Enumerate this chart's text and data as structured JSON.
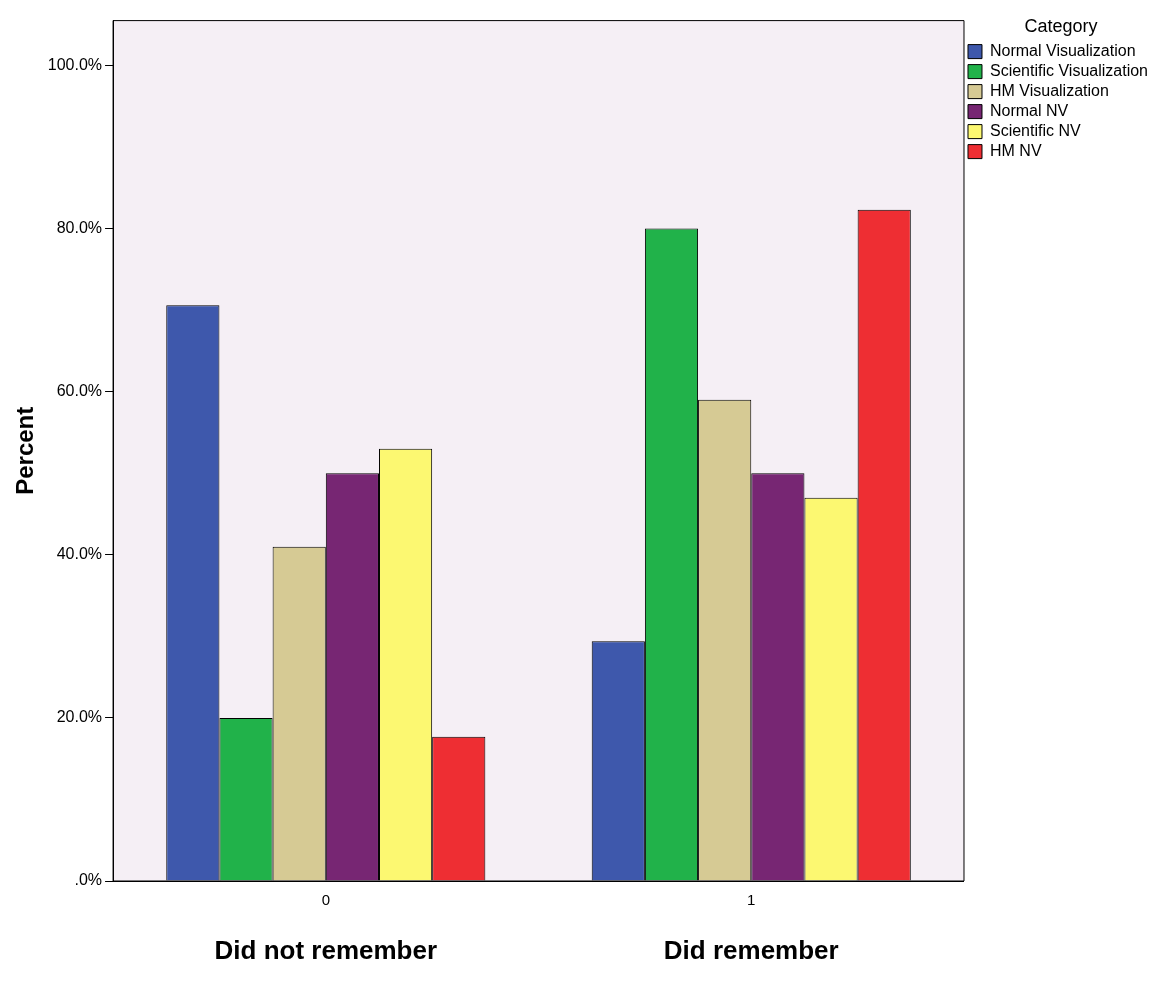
{
  "chart_data": {
    "type": "bar",
    "categories": [
      "0",
      "1"
    ],
    "series": [
      {
        "name": "Normal Visualization",
        "color": "#3e58ac",
        "values": [
          70.6,
          29.4
        ]
      },
      {
        "name": "Scientific Visualization",
        "color": "#21b24a",
        "values": [
          20,
          80
        ]
      },
      {
        "name": "HM Visualization",
        "color": "#d6ca94",
        "values": [
          41,
          59
        ]
      },
      {
        "name": "Normal NV",
        "color": "#772673",
        "values": [
          50,
          50
        ]
      },
      {
        "name": "Scientific NV",
        "color": "#fcf871",
        "values": [
          53,
          47
        ]
      },
      {
        "name": "HM NV",
        "color": "#ee2e33",
        "values": [
          17.7,
          82.3
        ]
      }
    ],
    "ylabel": "Percent",
    "legend_title": "Category",
    "legend": "top right",
    "grid": false,
    "ylim": [
      0,
      105.5
    ],
    "yticks": [
      {
        "value": 0,
        "label": ".0%"
      },
      {
        "value": 20,
        "label": "20.0%"
      },
      {
        "value": 40,
        "label": "40.0%"
      },
      {
        "value": 60,
        "label": "60.0%"
      },
      {
        "value": 80,
        "label": "80.0%"
      },
      {
        "value": 100,
        "label": "100.0%"
      }
    ],
    "annotations": [
      "Did not remember",
      "Did remember"
    ]
  }
}
